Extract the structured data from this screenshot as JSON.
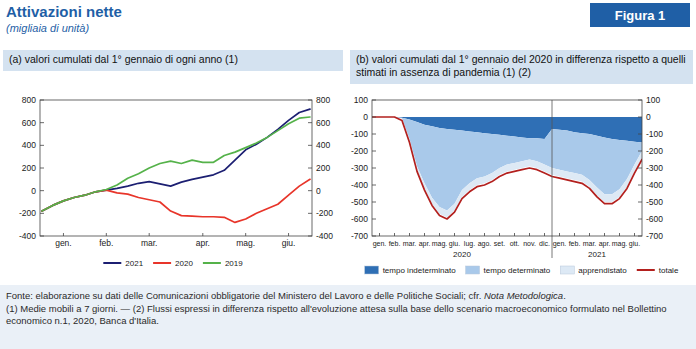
{
  "header": {
    "title": "Attivazioni nette",
    "subtitle": "(migliaia di unità)",
    "figure": "Figura 1"
  },
  "chart_data": [
    {
      "type": "line",
      "title": "(a) valori cumulati dal 1° gennaio di ogni anno (1)",
      "categories": [
        null,
        null,
        "gen.",
        null,
        null,
        null,
        "feb.",
        null,
        null,
        null,
        "mar.",
        null,
        null,
        null,
        null,
        "apr.",
        null,
        null,
        null,
        "mag.",
        null,
        null,
        null,
        "giu.",
        null,
        null
      ],
      "series": [
        {
          "name": "2021",
          "color": "#1c1f72",
          "values": [
            -180,
            -130,
            -90,
            -60,
            -40,
            -10,
            5,
            20,
            40,
            65,
            80,
            60,
            40,
            75,
            100,
            120,
            140,
            180,
            270,
            360,
            410,
            470,
            540,
            620,
            690,
            720
          ]
        },
        {
          "name": "2020",
          "color": "#e8352a",
          "values": [
            -180,
            -130,
            -90,
            -60,
            -40,
            -10,
            5,
            -20,
            -30,
            -60,
            -80,
            -100,
            -180,
            -220,
            -225,
            -230,
            -230,
            -235,
            -280,
            -250,
            -200,
            -160,
            -120,
            -40,
            40,
            100
          ]
        },
        {
          "name": "2019",
          "color": "#55b24a",
          "values": [
            -180,
            -130,
            -90,
            -60,
            -40,
            -10,
            10,
            50,
            110,
            150,
            200,
            240,
            260,
            240,
            270,
            250,
            250,
            310,
            340,
            380,
            420,
            470,
            530,
            590,
            640,
            650
          ]
        }
      ],
      "ylim": [
        -400,
        800
      ],
      "yticks": [
        -400,
        -200,
        0,
        200,
        400,
        600,
        800
      ],
      "grid": false,
      "legend": "bottom"
    },
    {
      "type": "area",
      "stacked": true,
      "title": "(b) valori cumulati dal 1° gennaio del 2020 in differenza rispetto a quelli stimati in assenza di pandemia (1) (2)",
      "categories": [
        null,
        "gen.",
        null,
        "feb.",
        null,
        "mar.",
        null,
        "apr.",
        null,
        "mag.",
        null,
        "giu.",
        null,
        "lug.",
        null,
        "ago.",
        null,
        "set.",
        null,
        "ott.",
        null,
        "nov.",
        null,
        "dic.",
        null,
        "gen.",
        null,
        "feb.",
        null,
        "mar.",
        null,
        "apr.",
        null,
        "mag.",
        null,
        "giu.",
        null
      ],
      "annotations": [
        "2020",
        "2021"
      ],
      "series": [
        {
          "name": "tempo indeterminato",
          "color": "#2f6fb5",
          "values": [
            0,
            0,
            0,
            0,
            -5,
            -15,
            -30,
            -45,
            -55,
            -65,
            -70,
            -75,
            -80,
            -85,
            -90,
            -95,
            -100,
            -105,
            -110,
            -115,
            -120,
            -125,
            -125,
            -130,
            -70,
            -75,
            -80,
            -90,
            -95,
            -100,
            -110,
            -120,
            -130,
            -135,
            -140,
            -145,
            -150
          ]
        },
        {
          "name": "tempo determinato",
          "color": "#a9c9ea",
          "values": [
            0,
            0,
            0,
            0,
            -3,
            -115,
            -260,
            -345,
            -420,
            -465,
            -480,
            -435,
            -350,
            -305,
            -270,
            -255,
            -230,
            -195,
            -170,
            -155,
            -140,
            -125,
            -135,
            -150,
            -230,
            -235,
            -240,
            -240,
            -245,
            -270,
            -305,
            -335,
            -325,
            -290,
            -225,
            -135,
            -50
          ]
        },
        {
          "name": "apprendistato",
          "color": "#dde9f5",
          "values": [
            0,
            0,
            0,
            0,
            -2,
            -10,
            -20,
            -30,
            -35,
            -40,
            -40,
            -40,
            -40,
            -40,
            -40,
            -40,
            -40,
            -40,
            -40,
            -40,
            -40,
            -40,
            -40,
            -40,
            -40,
            -40,
            -40,
            -40,
            -40,
            -40,
            -45,
            -45,
            -45,
            -45,
            -45,
            -40,
            -40
          ]
        },
        {
          "name": "totale",
          "type": "line",
          "color": "#b3201e",
          "values": [
            0,
            0,
            0,
            0,
            -20,
            -150,
            -320,
            -430,
            -520,
            -580,
            -600,
            -560,
            -480,
            -440,
            -410,
            -400,
            -380,
            -350,
            -330,
            -320,
            -310,
            -300,
            -310,
            -330,
            -350,
            -360,
            -370,
            -380,
            -390,
            -420,
            -470,
            -510,
            -510,
            -480,
            -420,
            -330,
            -250
          ]
        }
      ],
      "ylim": [
        -700,
        100
      ],
      "yticks": [
        -700,
        -600,
        -500,
        -400,
        -300,
        -200,
        -100,
        0,
        100
      ],
      "grid": false,
      "legend": "bottom"
    }
  ],
  "footer": {
    "source": "Fonte: elaborazione su dati delle Comunicazioni obbligatorie del Ministero del Lavoro e delle Politiche Sociali; cfr. ",
    "source_ref": "Nota Metodologica",
    "source_end": ".",
    "notes": "(1) Medie mobili a 7 giorni. — (2) Flussi espressi in differenza rispetto all'evoluzione attesa sulla base dello scenario macroeconomico formulato nel Bollettino economico n.1, 2020, Banca d'Italia."
  }
}
